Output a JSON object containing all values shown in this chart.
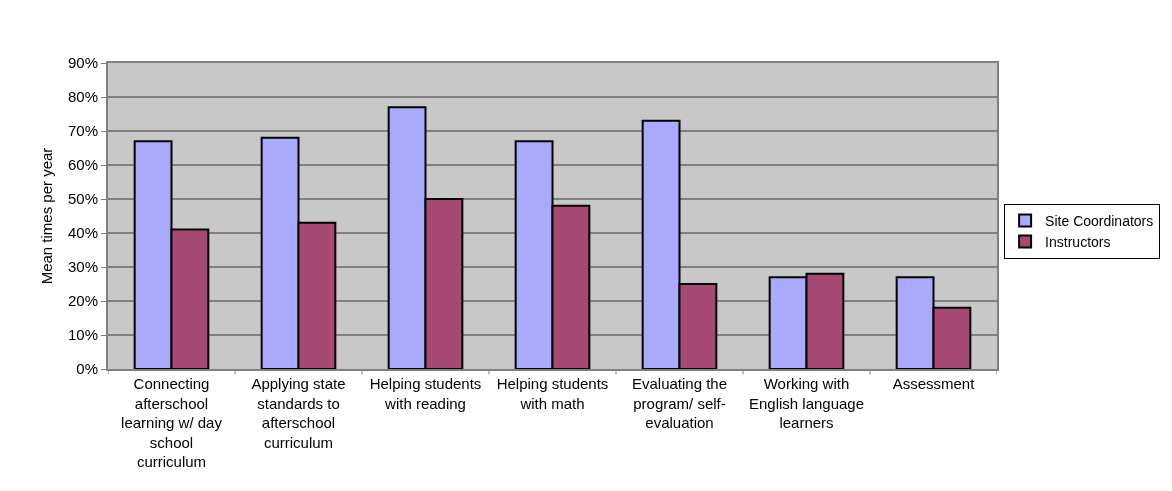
{
  "chart_data": {
    "type": "bar",
    "ylabel": "Mean times per year",
    "categories": [
      "Connecting afterschool learning w/ day school curriculum",
      "Applying state standards to afterschool curriculum",
      "Helping students with reading",
      "Helping students with math",
      "Evaluating the program/ self-evaluation",
      "Working with English language learners",
      "Assessment"
    ],
    "series": [
      {
        "name": "Site Coordinators",
        "color": "#aaaafc",
        "values": [
          67,
          68,
          77,
          67,
          73,
          27,
          27
        ]
      },
      {
        "name": "Instructors",
        "color": "#a64a73",
        "values": [
          41,
          43,
          50,
          48,
          25,
          28,
          18
        ]
      }
    ],
    "ylim": [
      0,
      90
    ],
    "yticks": [
      {
        "value": 0,
        "label": "0%"
      },
      {
        "value": 10,
        "label": "10%"
      },
      {
        "value": 20,
        "label": "20%"
      },
      {
        "value": 30,
        "label": "30%"
      },
      {
        "value": 40,
        "label": "40%"
      },
      {
        "value": 50,
        "label": "50%"
      },
      {
        "value": 60,
        "label": "60%"
      },
      {
        "value": 70,
        "label": "70%"
      },
      {
        "value": 80,
        "label": "80%"
      },
      {
        "value": 90,
        "label": "90%"
      }
    ],
    "grid": "y",
    "legend": "right"
  }
}
